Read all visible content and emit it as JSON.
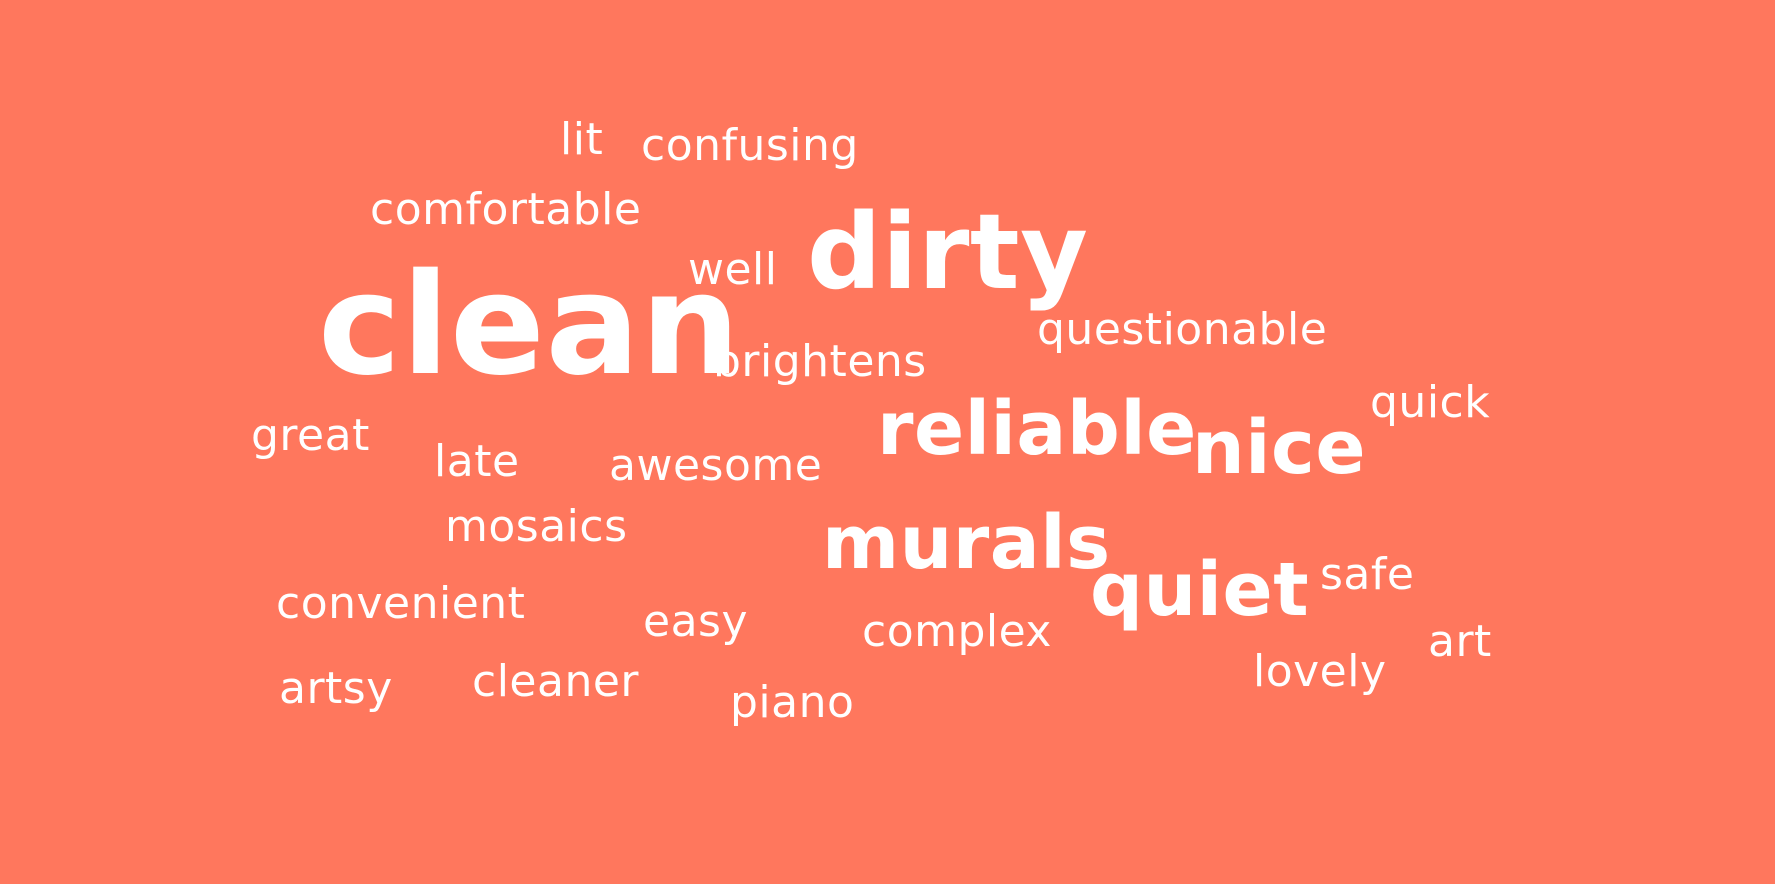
{
  "colors": {
    "background": "#ff775d",
    "text": "#ffffff"
  },
  "words": [
    {
      "text": "lit"
    },
    {
      "text": "confusing"
    },
    {
      "text": "comfortable"
    },
    {
      "text": "well"
    },
    {
      "text": "dirty"
    },
    {
      "text": "clean"
    },
    {
      "text": "questionable"
    },
    {
      "text": "brightens"
    },
    {
      "text": "quick"
    },
    {
      "text": "great"
    },
    {
      "text": "reliable"
    },
    {
      "text": "nice"
    },
    {
      "text": "late"
    },
    {
      "text": "awesome"
    },
    {
      "text": "mosaics"
    },
    {
      "text": "murals"
    },
    {
      "text": "quiet"
    },
    {
      "text": "safe"
    },
    {
      "text": "convenient"
    },
    {
      "text": "easy"
    },
    {
      "text": "complex"
    },
    {
      "text": "art"
    },
    {
      "text": "lovely"
    },
    {
      "text": "artsy"
    },
    {
      "text": "cleaner"
    },
    {
      "text": "piano"
    }
  ]
}
